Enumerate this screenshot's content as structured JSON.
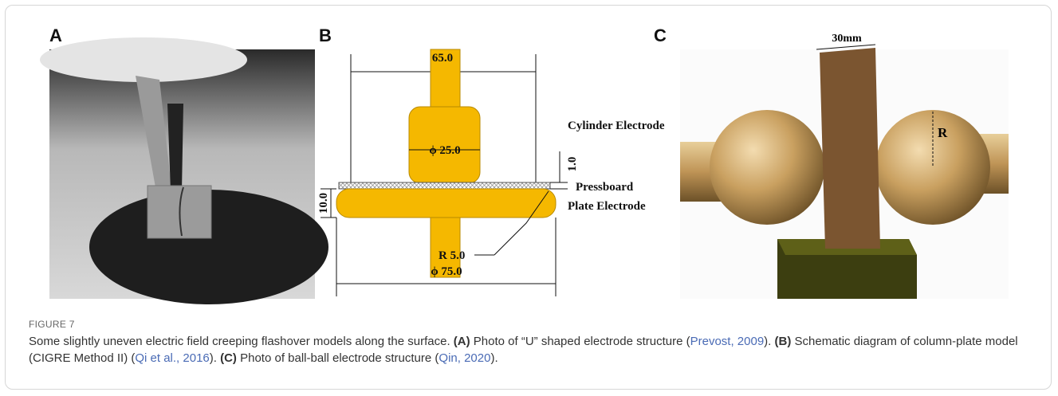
{
  "panels": [
    {
      "label": "A"
    },
    {
      "label": "B",
      "annotations": [
        "65.0",
        "ϕ 25.0",
        "Cylinder Electrode",
        "1.0",
        "Pressboard",
        "10.0",
        "Plate Electrode",
        "R 5.0",
        "ϕ 75.0"
      ]
    },
    {
      "label": "C",
      "annotations": [
        "30mm",
        "R"
      ]
    }
  ],
  "caption": {
    "figure_label": "FIGURE 7",
    "parts": [
      "Some slightly uneven electric field creeping flashover models along the surface. ",
      "(A)",
      " Photo of “U” shaped electrode structure (",
      "Prevost, 2009",
      "). ",
      "(B)",
      " Schematic diagram of column-plate model (CIGRE Method II) (",
      "Qi et al., 2016",
      "). ",
      "(C)",
      " Photo of ball-ball electrode structure (",
      "Qin, 2020",
      ")."
    ]
  }
}
